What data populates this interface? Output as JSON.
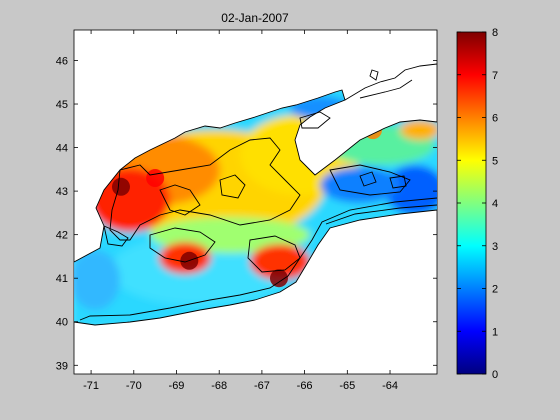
{
  "chart_data": {
    "type": "heatmap",
    "title": "02-Jan-2007",
    "xlabel": "",
    "ylabel": "",
    "xlim": [
      -71.4,
      -62.9
    ],
    "ylim": [
      38.8,
      46.7
    ],
    "x_ticks": [
      -71,
      -70,
      -69,
      -68,
      -67,
      -66,
      -65,
      -64
    ],
    "y_ticks": [
      39,
      40,
      41,
      42,
      43,
      44,
      45,
      46
    ],
    "colorbar": {
      "min": 0,
      "max": 8,
      "ticks": [
        0,
        1,
        2,
        3,
        4,
        5,
        6,
        7,
        8
      ],
      "colormap": "jet",
      "stops": [
        "#00007f",
        "#0000ff",
        "#0080ff",
        "#00ffff",
        "#80ff80",
        "#ffff00",
        "#ff8000",
        "#ff0000",
        "#7f0000"
      ]
    },
    "grid": false,
    "hotspots": [
      {
        "lon": -70.3,
        "lat": 43.1,
        "value": 7.8
      },
      {
        "lon": -68.7,
        "lat": 41.4,
        "value": 7.5
      },
      {
        "lon": -66.6,
        "lat": 41.0,
        "value": 7.6
      },
      {
        "lon": -69.5,
        "lat": 43.3,
        "value": 6.5
      },
      {
        "lon": -64.4,
        "lat": 44.4,
        "value": 6.0
      }
    ]
  }
}
